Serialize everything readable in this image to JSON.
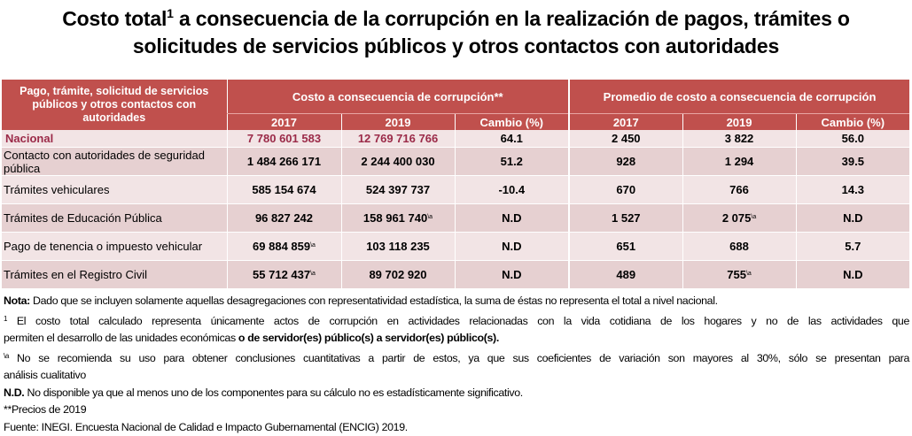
{
  "title": {
    "line1_before": "Costo total",
    "line1_sup": "1",
    "line1_after": " a consecuencia de la corrupción en la realización de pagos, trámites o",
    "line2": "solicitudes de servicios públicos y otros contactos con autoridades"
  },
  "table": {
    "row_header": "Pago, trámite, solicitud de servicios públicos y otros contactos con autoridades",
    "group1": "Costo a consecuencia de corrupción**",
    "group2": "Promedio de costo a consecuencia de corrupción",
    "subheaders": [
      "2017",
      "2019",
      "Cambio (%)",
      "2017",
      "2019",
      "Cambio (%)"
    ],
    "rows": [
      {
        "label": "Nacional",
        "cells": [
          "7 780 601 583",
          "12 769 716 766",
          "64.1",
          "2 450",
          "3 822",
          "56.0"
        ],
        "sups": [
          "",
          "",
          "",
          "",
          "",
          ""
        ]
      },
      {
        "label": "Contacto con autoridades de seguridad pública",
        "cells": [
          "1 484 266 171",
          "2 244 400 030",
          "51.2",
          "928",
          "1 294",
          "39.5"
        ],
        "sups": [
          "",
          "",
          "",
          "",
          "",
          ""
        ]
      },
      {
        "label": "Trámites vehiculares",
        "cells": [
          "585 154 674",
          "524 397 737",
          "-10.4",
          "670",
          "766",
          "14.3"
        ],
        "sups": [
          "",
          "",
          "",
          "",
          "",
          ""
        ]
      },
      {
        "label": "Trámites de Educación Pública",
        "cells": [
          "96 827 242",
          "158 961 740",
          "N.D",
          "1 527",
          "2 075",
          "N.D"
        ],
        "sups": [
          "",
          "\\a",
          "",
          "",
          "\\a",
          ""
        ]
      },
      {
        "label": "Pago de tenencia o impuesto vehicular",
        "cells": [
          "69 884 859",
          "103 118 235",
          "N.D",
          "651",
          "688",
          "5.7"
        ],
        "sups": [
          "\\a",
          "",
          "",
          "",
          "",
          ""
        ]
      },
      {
        "label": "Trámites en el Registro Civil",
        "cells": [
          "55 712 437",
          "89 702 920",
          "N.D",
          "489",
          "755",
          "N.D"
        ],
        "sups": [
          "\\a",
          "",
          "",
          "",
          "\\a",
          ""
        ]
      }
    ]
  },
  "notes": {
    "nota_label": "Nota:",
    "nota_text": " Dado que se incluyen solamente aquellas desagregaciones con representatividad estadística, la suma de éstas no representa el total a nivel nacional.",
    "n1_sup": "1",
    "n1_text_a": " El costo total calculado representa únicamente actos de corrupción en actividades relacionadas con la vida cotidiana de los hogares y no de las actividades que",
    "n1_text_b": "permiten el desarrollo de las unidades económicas ",
    "n1_bold": "o de servidor(es) público(s) a servidor(es) público(s).",
    "na_sup": "\\a",
    "na_text_a": " No se recomienda su uso para obtener conclusiones cuantitativas a partir de estos, ya que sus coeficientes de variación son mayores al 30%, sólo se presentan para",
    "na_text_b": "análisis cualitativo",
    "nd_label": "N.D.",
    "nd_text": " No disponible ya que al menos uno de los componentes para su cálculo no es estadísticamente significativo.",
    "precios": "**Precios de 2019",
    "fuente": "Fuente: INEGI. Encuesta Nacional de Calidad e Impacto Gubernamental (ENCIG) 2019."
  },
  "colors": {
    "header": "#c0504d",
    "row_light": "#f2e4e5",
    "row_dark": "#e6d0d1",
    "nacional_text": "#9b2a48"
  }
}
